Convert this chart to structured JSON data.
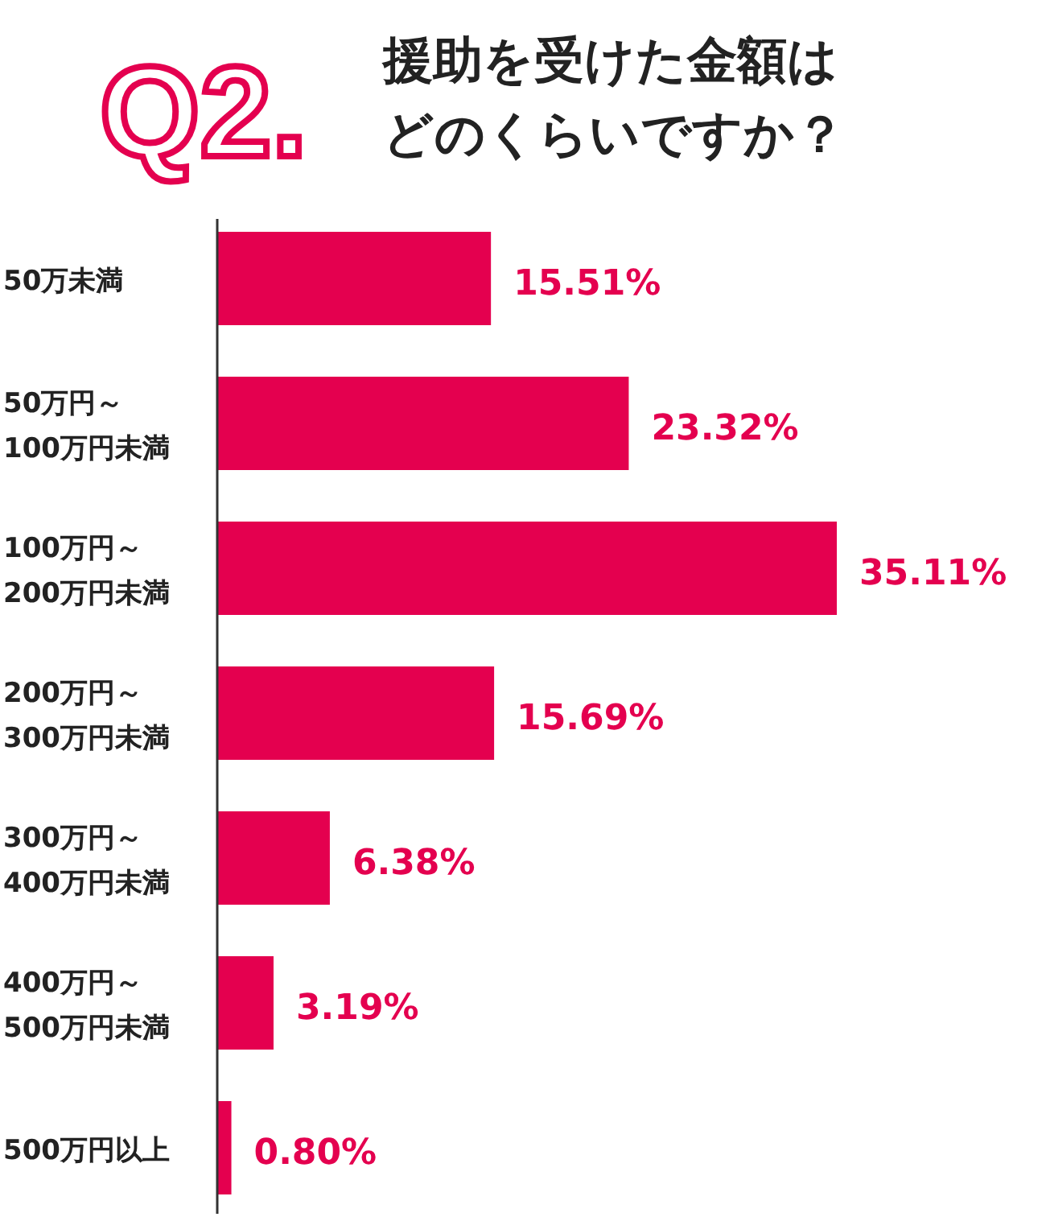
{
  "chart_data": {
    "type": "bar",
    "orientation": "horizontal",
    "title": "Q2.",
    "subtitle": "援助を受けた金額はどのくらいですか？",
    "categories": [
      "50万未満",
      "50万円～\n100万円未満",
      "100万円～\n200万円未満",
      "200万円～\n300万円未満",
      "300万円～\n400万円未満",
      "400万円～\n500万円未満",
      "500万円以上"
    ],
    "values": [
      15.51,
      23.32,
      35.11,
      15.69,
      6.38,
      3.19,
      0.8
    ],
    "value_labels": [
      "15.51%",
      "23.32%",
      "35.11%",
      "15.69%",
      "6.38%",
      "3.19%",
      "0.80%"
    ],
    "color": "#e4004f"
  }
}
